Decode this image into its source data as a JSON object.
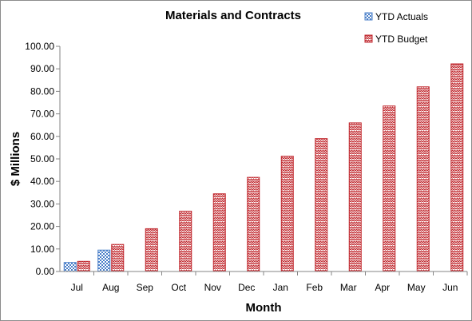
{
  "chart_data": {
    "type": "bar",
    "title": "Materials and Contracts",
    "xlabel": "Month",
    "ylabel": "$ Millions",
    "categories": [
      "Jul",
      "Aug",
      "Sep",
      "Oct",
      "Nov",
      "Dec",
      "Jan",
      "Feb",
      "Mar",
      "Apr",
      "May",
      "Jun"
    ],
    "y_ticks": [
      "0.00",
      "10.00",
      "20.00",
      "30.00",
      "40.00",
      "50.00",
      "60.00",
      "70.00",
      "80.00",
      "90.00",
      "100.00"
    ],
    "ylim": [
      0,
      100
    ],
    "grid": false,
    "legend_position": "top-right",
    "series": [
      {
        "name": "YTD Actuals",
        "color": "#4a7fc8",
        "pattern": "checkerboard",
        "values": [
          4.0,
          9.5,
          null,
          null,
          null,
          null,
          null,
          null,
          null,
          null,
          null,
          null
        ]
      },
      {
        "name": "YTD Budget",
        "color": "#c0262c",
        "pattern": "zigzag",
        "values": [
          4.5,
          12.0,
          19.0,
          26.8,
          34.5,
          41.8,
          51.2,
          59.0,
          66.0,
          73.5,
          82.0,
          92.2
        ]
      }
    ]
  }
}
